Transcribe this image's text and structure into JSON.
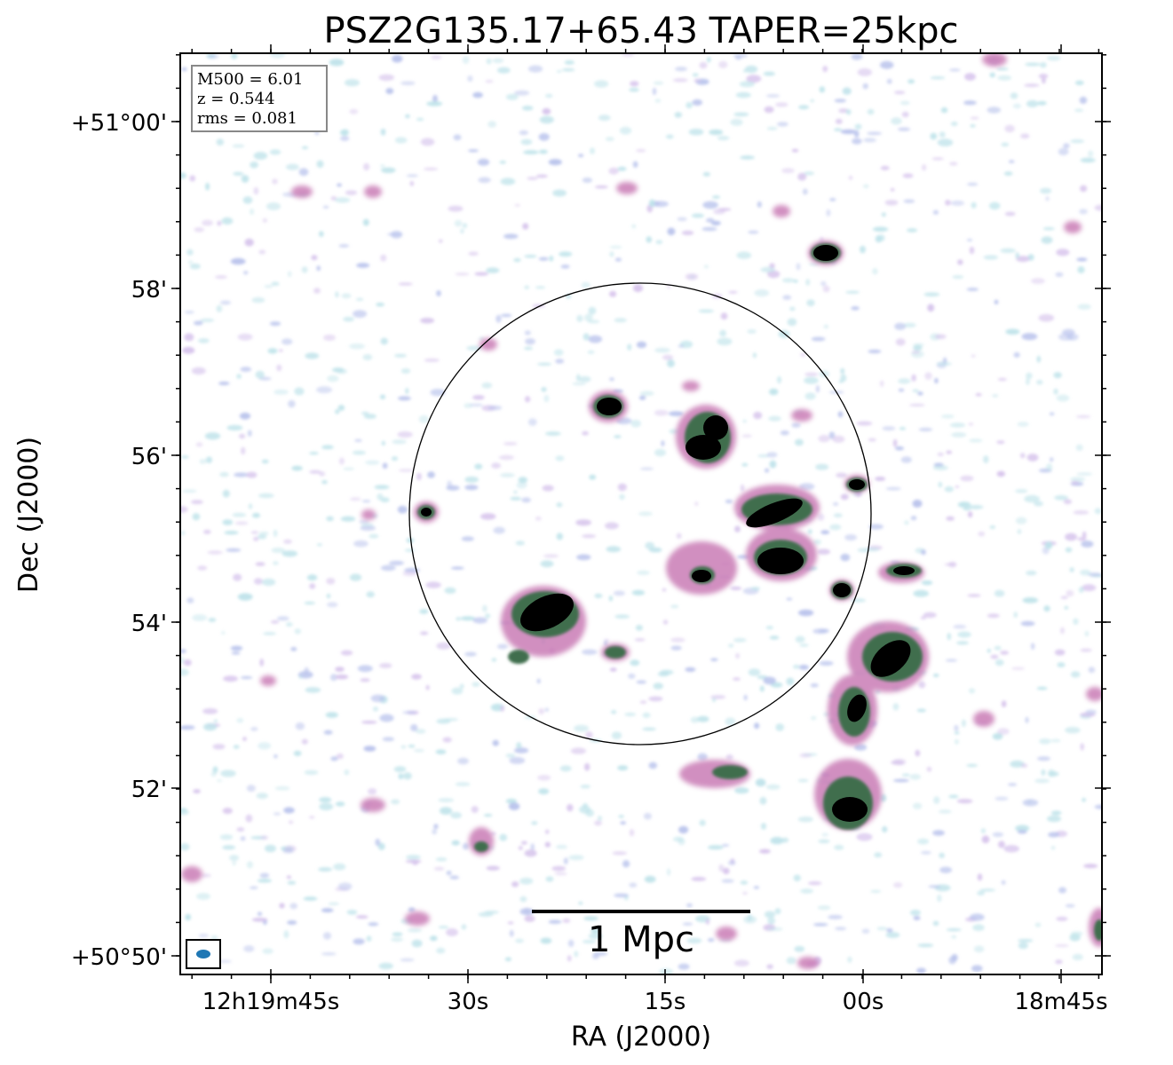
{
  "title": "PSZ2G135.17+65.43 TAPER=25kpc",
  "info_box": {
    "lines": [
      "M500 = 6.01",
      "z = 0.544",
      "rms = 0.081"
    ]
  },
  "axes": {
    "xlabel": "RA (J2000)",
    "ylabel": "Dec (J2000)",
    "xticks": [
      "12h19m45s",
      "30s",
      "15s",
      "00s",
      "18m45s"
    ],
    "yticks": [
      "+51°00'",
      "58'",
      "56'",
      "54'",
      "52'",
      "+50°50'"
    ]
  },
  "scale_bar": {
    "label": "1 Mpc"
  },
  "colors": {
    "noise_light": "#bfe3ea",
    "noise_blue": "#b8c2ec",
    "emission_pink": "#c97bb5",
    "emission_green": "#3f6e4e",
    "emission_core": "#000000",
    "beam": "#1f77b4",
    "circle": "#000000"
  }
}
